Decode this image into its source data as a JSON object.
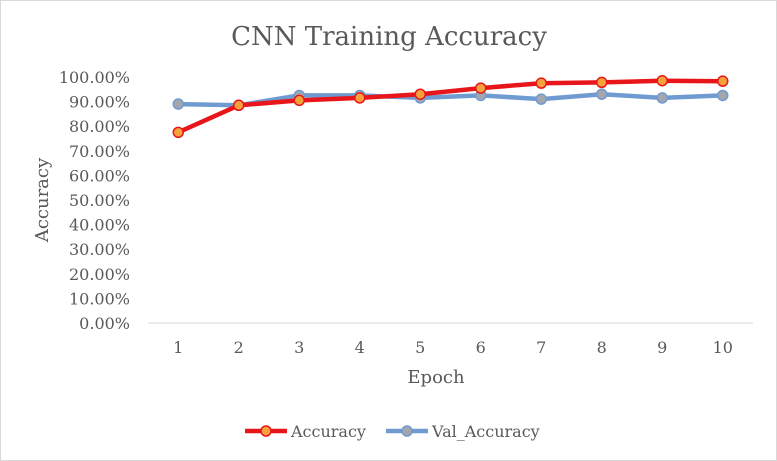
{
  "chart_data": {
    "type": "line",
    "title": "CNN Training Accuracy",
    "xlabel": "Epoch",
    "ylabel": "Accuracy",
    "categories": [
      "1",
      "2",
      "3",
      "4",
      "5",
      "6",
      "7",
      "8",
      "9",
      "10"
    ],
    "ylim": [
      0,
      1
    ],
    "yticks": [
      0,
      0.1,
      0.2,
      0.3,
      0.4,
      0.5,
      0.6,
      0.7,
      0.8,
      0.9,
      1.0
    ],
    "ytick_labels": [
      "0.00%",
      "10.00%",
      "20.00%",
      "30.00%",
      "40.00%",
      "50.00%",
      "60.00%",
      "70.00%",
      "80.00%",
      "90.00%",
      "100.00%"
    ],
    "grid": false,
    "legend_position": "bottom",
    "series": [
      {
        "name": "Accuracy",
        "color": "#e8161a",
        "marker_fill": "#f7a13d",
        "values": [
          0.775,
          0.885,
          0.905,
          0.915,
          0.93,
          0.955,
          0.975,
          0.978,
          0.985,
          0.983
        ]
      },
      {
        "name": "Val_Accuracy",
        "color": "#6f9bd1",
        "marker_fill": "#a3a7ad",
        "values": [
          0.89,
          0.885,
          0.925,
          0.925,
          0.915,
          0.925,
          0.91,
          0.93,
          0.915,
          0.925
        ]
      }
    ]
  }
}
